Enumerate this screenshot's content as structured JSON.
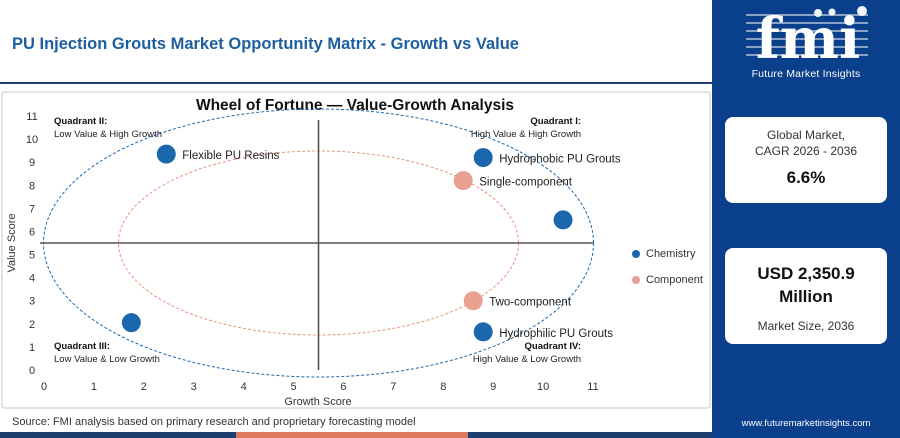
{
  "header": {
    "title": "PU Injection Grouts Market Opportunity Matrix - Growth vs Value"
  },
  "sidebar": {
    "logo_text": "fmi",
    "logo_subtitle": "Future Market Insights",
    "cards": [
      {
        "label_line1": "Global Market,",
        "label_line2": "CAGR 2026 - 2036",
        "value": "6.6%"
      },
      {
        "value_line1": "USD 2,350.9",
        "value_line2": "Million",
        "label": "Market Size, 2036"
      }
    ],
    "url": "www.futuremarketinsights.com"
  },
  "source": "Source: FMI analysis based on primary research and proprietary forecasting model",
  "colors": {
    "chemistry": "#1b67ad",
    "component": "#e8a090",
    "brand": "#0a3f8c",
    "title": "#1d5e9e"
  },
  "chart_data": {
    "type": "scatter",
    "title": "Wheel of Fortune — Value-Growth Analysis",
    "xlabel": "Growth Score",
    "ylabel": "Value Score",
    "xlim": [
      0,
      11
    ],
    "ylim": [
      0,
      11
    ],
    "xticks": [
      0,
      1,
      2,
      3,
      4,
      5,
      6,
      7,
      8,
      9,
      10,
      11
    ],
    "yticks": [
      0,
      1,
      2,
      3,
      4,
      5,
      6,
      7,
      8,
      9,
      10,
      11
    ],
    "divider": {
      "x": 5.5,
      "y": 5.5
    },
    "quadrants": [
      {
        "name": "Quadrant II:",
        "desc": "Low Value & High Growth",
        "position": "top-left"
      },
      {
        "name": "Quadrant I:",
        "desc": "High Value & High Growth",
        "position": "top-right"
      },
      {
        "name": "Quadrant III:",
        "desc": "Low Value & Low Growth",
        "position": "bottom-left"
      },
      {
        "name": "Quadrant IV:",
        "desc": "High Value & Low Growth",
        "position": "bottom-right"
      }
    ],
    "series": [
      {
        "name": "Chemistry",
        "color": "#1b67ad",
        "points": [
          {
            "label": "Flexible PU Resins",
            "x": 2.45,
            "y": 9.35
          },
          {
            "label": "Hydrophobic PU Grouts",
            "x": 8.8,
            "y": 9.2
          },
          {
            "label": "",
            "x": 10.4,
            "y": 6.5
          },
          {
            "label": "",
            "x": 1.75,
            "y": 2.05
          },
          {
            "label": "Hydrophilic PU Grouts",
            "x": 8.8,
            "y": 1.65
          }
        ]
      },
      {
        "name": "Component",
        "color": "#e8a090",
        "points": [
          {
            "label": "Single-component",
            "x": 8.4,
            "y": 8.2
          },
          {
            "label": "Two-component",
            "x": 8.6,
            "y": 3.0
          }
        ]
      }
    ],
    "legend_position": "right"
  }
}
